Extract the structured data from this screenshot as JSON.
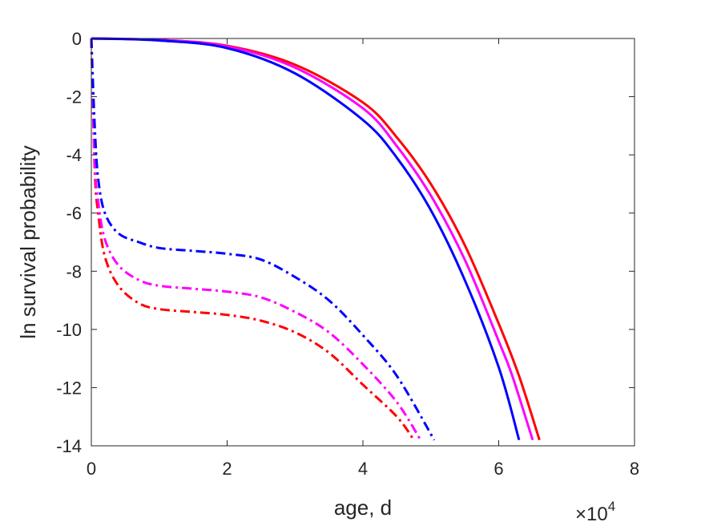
{
  "chart_data": {
    "type": "line",
    "title": "",
    "xlabel": "age, d",
    "ylabel": "ln survival probability",
    "x_exponent_label": {
      "base": "×10",
      "power": "4"
    },
    "xlim": [
      0,
      80000
    ],
    "ylim": [
      -14,
      0
    ],
    "x_ticks": [
      0,
      20000,
      40000,
      60000,
      80000
    ],
    "x_tick_labels": [
      "0",
      "2",
      "4",
      "6",
      "8"
    ],
    "y_ticks": [
      0,
      -2,
      -4,
      -6,
      -8,
      -10,
      -12,
      -14
    ],
    "y_tick_labels": [
      "0",
      "-2",
      "-4",
      "-6",
      "-8",
      "-10",
      "-12",
      "-14"
    ],
    "grid": false,
    "legend": "none",
    "series": [
      {
        "color": "#ff0000",
        "style": "solid",
        "x": [
          0,
          10000,
          20000,
          30000,
          40000,
          45000,
          50000,
          55000,
          60000,
          63000,
          66000
        ],
        "y": [
          0,
          -0.05,
          -0.25,
          -0.9,
          -2.2,
          -3.4,
          -5.0,
          -7.1,
          -9.8,
          -11.6,
          -13.8
        ]
      },
      {
        "color": "#ff00ff",
        "style": "solid",
        "x": [
          0,
          10000,
          20000,
          30000,
          40000,
          45000,
          50000,
          55000,
          60000,
          62000,
          65000
        ],
        "y": [
          0,
          -0.05,
          -0.27,
          -1.0,
          -2.4,
          -3.7,
          -5.4,
          -7.6,
          -10.4,
          -11.6,
          -13.8
        ]
      },
      {
        "color": "#0000ff",
        "style": "solid",
        "x": [
          0,
          10000,
          20000,
          30000,
          40000,
          45000,
          50000,
          55000,
          60000,
          63000
        ],
        "y": [
          0,
          -0.07,
          -0.33,
          -1.2,
          -2.8,
          -4.1,
          -5.9,
          -8.3,
          -11.3,
          -13.8
        ]
      },
      {
        "color": "#ff0000",
        "style": "dashdot",
        "x": [
          0,
          500,
          1000,
          2000,
          4000,
          7000,
          10000,
          15000,
          20000,
          25000,
          30000,
          35000,
          40000,
          45000,
          47500
        ],
        "y": [
          0,
          -4.5,
          -6.0,
          -7.5,
          -8.5,
          -9.1,
          -9.3,
          -9.4,
          -9.5,
          -9.7,
          -10.1,
          -10.8,
          -11.9,
          -13.0,
          -13.8
        ]
      },
      {
        "color": "#ff00ff",
        "style": "dashdot",
        "x": [
          0,
          500,
          1000,
          2000,
          4000,
          7000,
          10000,
          15000,
          20000,
          25000,
          30000,
          35000,
          40000,
          45000,
          48500
        ],
        "y": [
          0,
          -4.2,
          -5.6,
          -6.9,
          -7.8,
          -8.3,
          -8.5,
          -8.6,
          -8.7,
          -8.9,
          -9.4,
          -10.1,
          -11.2,
          -12.5,
          -13.8
        ]
      },
      {
        "color": "#0000ff",
        "style": "dashdot",
        "x": [
          0,
          500,
          1000,
          2000,
          4000,
          7000,
          10000,
          15000,
          20000,
          25000,
          30000,
          35000,
          40000,
          45000,
          50500
        ],
        "y": [
          0,
          -3.0,
          -4.8,
          -6.0,
          -6.7,
          -7.0,
          -7.2,
          -7.3,
          -7.4,
          -7.6,
          -8.2,
          -9.0,
          -10.2,
          -11.6,
          -13.8
        ]
      }
    ]
  }
}
